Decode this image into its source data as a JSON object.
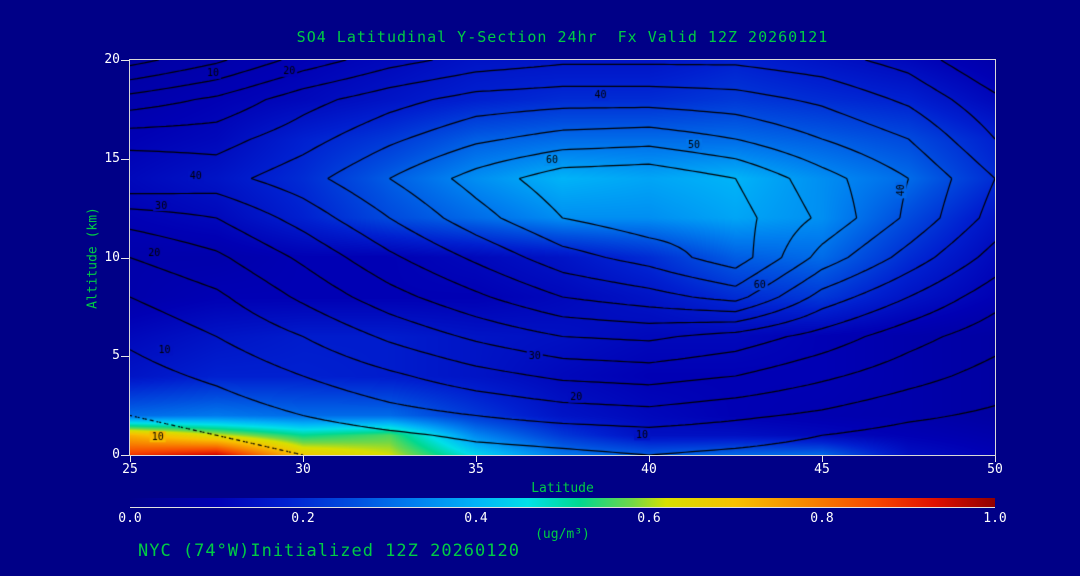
{
  "footer": "NYC (74°W)Initialized 12Z 20260120",
  "colors": {
    "background": "#000087",
    "accent_green": "#00cc44",
    "tick_text": "#ffffff",
    "contour_line": "#000000",
    "frame": "#d8d8d8"
  },
  "chart_data": {
    "type": "heatmap",
    "title": "SO4 Latitudinal Y-Section 24hr  Fx Valid 12Z 20260121",
    "xlabel": "Latitude",
    "ylabel": "Altitude (km)",
    "xlim": [
      25,
      50
    ],
    "ylim": [
      0,
      20
    ],
    "x_ticks": [
      25,
      30,
      35,
      40,
      45,
      50
    ],
    "y_ticks": [
      0,
      5,
      10,
      15,
      20
    ],
    "grid": false,
    "legend": "none",
    "colorbar": {
      "label": "(ug/m³)",
      "ticks": [
        "0.0",
        "0.2",
        "0.4",
        "0.6",
        "0.8",
        "1.0"
      ],
      "min": 0.0,
      "max": 1.0
    },
    "colormap": [
      [
        0.0,
        "#000087"
      ],
      [
        0.1,
        "#0000b4"
      ],
      [
        0.18,
        "#0020d0"
      ],
      [
        0.26,
        "#0050e0"
      ],
      [
        0.33,
        "#0080f0"
      ],
      [
        0.4,
        "#00b4f8"
      ],
      [
        0.46,
        "#00e0e8"
      ],
      [
        0.52,
        "#00d890"
      ],
      [
        0.58,
        "#70d848"
      ],
      [
        0.62,
        "#d8e000"
      ],
      [
        0.7,
        "#f8c000"
      ],
      [
        0.78,
        "#f88800"
      ],
      [
        0.86,
        "#f84800"
      ],
      [
        0.93,
        "#e01000"
      ],
      [
        1.0,
        "#900000"
      ]
    ],
    "fill_field": {
      "name": "SO4 concentration (ug/m3), shaded",
      "lats": [
        25,
        27.5,
        30,
        32.5,
        35,
        37.5,
        40,
        42.5,
        45,
        47.5,
        50
      ],
      "alts": [
        0,
        1,
        2,
        4,
        6,
        8,
        10,
        12,
        14,
        16,
        18,
        20
      ],
      "values": [
        [
          0.88,
          0.95,
          0.68,
          0.62,
          0.45,
          0.32,
          0.28,
          0.3,
          0.3,
          0.14,
          0.1
        ],
        [
          0.72,
          0.62,
          0.52,
          0.56,
          0.34,
          0.22,
          0.14,
          0.14,
          0.12,
          0.1,
          0.08
        ],
        [
          0.3,
          0.32,
          0.3,
          0.3,
          0.22,
          0.15,
          0.12,
          0.1,
          0.09,
          0.08,
          0.06
        ],
        [
          0.15,
          0.18,
          0.18,
          0.17,
          0.15,
          0.12,
          0.1,
          0.1,
          0.1,
          0.08,
          0.06
        ],
        [
          0.12,
          0.15,
          0.17,
          0.17,
          0.15,
          0.14,
          0.12,
          0.12,
          0.1,
          0.08,
          0.06
        ],
        [
          0.08,
          0.1,
          0.1,
          0.1,
          0.1,
          0.12,
          0.15,
          0.2,
          0.22,
          0.15,
          0.1
        ],
        [
          0.08,
          0.08,
          0.1,
          0.1,
          0.12,
          0.15,
          0.2,
          0.28,
          0.3,
          0.2,
          0.12
        ],
        [
          0.1,
          0.12,
          0.18,
          0.25,
          0.3,
          0.35,
          0.35,
          0.38,
          0.35,
          0.25,
          0.15
        ],
        [
          0.12,
          0.15,
          0.2,
          0.28,
          0.35,
          0.4,
          0.38,
          0.4,
          0.35,
          0.3,
          0.2
        ],
        [
          0.1,
          0.12,
          0.18,
          0.22,
          0.28,
          0.3,
          0.3,
          0.3,
          0.28,
          0.25,
          0.18
        ],
        [
          0.08,
          0.1,
          0.12,
          0.15,
          0.18,
          0.2,
          0.2,
          0.22,
          0.2,
          0.18,
          0.12
        ],
        [
          0.06,
          0.08,
          0.1,
          0.12,
          0.15,
          0.15,
          0.15,
          0.18,
          0.15,
          0.12,
          0.08
        ]
      ]
    },
    "contour_field": {
      "name": "overlaid black contour lines",
      "levels": [
        5,
        10,
        15,
        20,
        25,
        30,
        35,
        40,
        45,
        50,
        55,
        60
      ],
      "dotted_level": 5,
      "lats": [
        25,
        27.5,
        30,
        32.5,
        35,
        37.5,
        40,
        42.5,
        45,
        47.5,
        50
      ],
      "alts": [
        0,
        1,
        2,
        4,
        6,
        8,
        10,
        12,
        14,
        16,
        18,
        20
      ],
      "values": [
        [
          2,
          3,
          5,
          6,
          8,
          9,
          10,
          9,
          8,
          6,
          5
        ],
        [
          3,
          5,
          7,
          9,
          11,
          12,
          13,
          12,
          10,
          8,
          7
        ],
        [
          5,
          7,
          10,
          13,
          15,
          17,
          18,
          16,
          14,
          11,
          9
        ],
        [
          8,
          11,
          15,
          19,
          23,
          26,
          27,
          25,
          21,
          17,
          13
        ],
        [
          11,
          15,
          20,
          26,
          31,
          35,
          36,
          33,
          28,
          22,
          17
        ],
        [
          15,
          19,
          26,
          33,
          39,
          45,
          48,
          52,
          38,
          30,
          22
        ],
        [
          20,
          24,
          31,
          39,
          46,
          53,
          57,
          63,
          48,
          38,
          28
        ],
        [
          27,
          30,
          37,
          45,
          53,
          60,
          63,
          62,
          54,
          44,
          33
        ],
        [
          40,
          38,
          43,
          50,
          57,
          63,
          64,
          60,
          52,
          45,
          35
        ],
        [
          33,
          33,
          38,
          44,
          49,
          52,
          53,
          50,
          45,
          40,
          30
        ],
        [
          22,
          26,
          33,
          38,
          42,
          43,
          43,
          42,
          39,
          34,
          26
        ],
        [
          8,
          14,
          22,
          28,
          32,
          34,
          34,
          34,
          32,
          28,
          20
        ]
      ],
      "labels": [
        {
          "t": "10",
          "lat": 27.4,
          "alt": 19.3
        },
        {
          "t": "20",
          "lat": 29.6,
          "alt": 19.4
        },
        {
          "t": "40",
          "lat": 38.6,
          "alt": 18.2
        },
        {
          "t": "50",
          "lat": 41.3,
          "alt": 15.7
        },
        {
          "t": "60",
          "lat": 37.2,
          "alt": 14.9
        },
        {
          "t": "40",
          "lat": 26.9,
          "alt": 14.1
        },
        {
          "t": "30",
          "lat": 25.9,
          "alt": 12.6
        },
        {
          "t": "20",
          "lat": 25.7,
          "alt": 10.2
        },
        {
          "t": "10",
          "lat": 26.0,
          "alt": 5.3
        },
        {
          "t": "60",
          "lat": 43.2,
          "alt": 8.6
        },
        {
          "t": "40",
          "lat": 47.3,
          "alt": 13.4,
          "rot": -90
        },
        {
          "t": "30",
          "lat": 36.7,
          "alt": 5.0
        },
        {
          "t": "20",
          "lat": 37.9,
          "alt": 2.9
        },
        {
          "t": "10",
          "lat": 39.8,
          "alt": 1.0
        },
        {
          "t": "10",
          "lat": 25.8,
          "alt": 0.9
        }
      ]
    }
  }
}
